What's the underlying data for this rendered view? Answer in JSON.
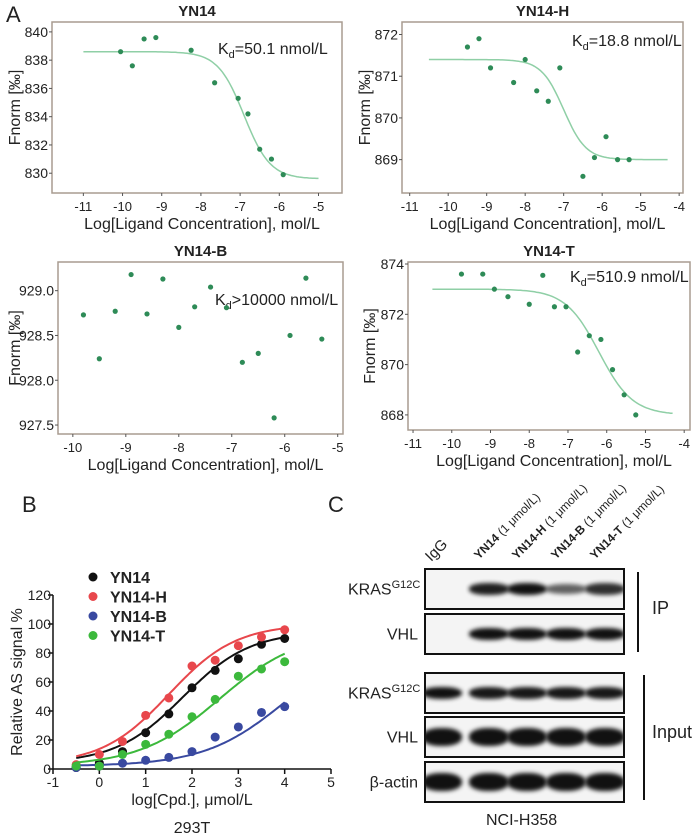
{
  "panel_labels": {
    "a": "A",
    "b": "B",
    "c": "C"
  },
  "chart_data": [
    {
      "type": "scatter",
      "title": "YN14",
      "xlabel": "Log[Ligand Concentration], mol/L",
      "ylabel": "Fnorm [‰]",
      "kd": {
        "k": "K",
        "sub": "d",
        "text": "=50.1 nmol/L"
      },
      "xlim": [
        -11.8,
        -4.4
      ],
      "ylim": [
        828.6,
        840.7
      ],
      "xticks": [
        -11,
        -10,
        -9,
        -8,
        -7,
        -6,
        -5
      ],
      "yticks": [
        830,
        832,
        834,
        836,
        838,
        840
      ],
      "point_color": "#2e8b57",
      "curve_color": "#8fcfa6",
      "points": [
        [
          -10.05,
          838.6
        ],
        [
          -9.75,
          837.6
        ],
        [
          -9.45,
          839.5
        ],
        [
          -9.15,
          839.6
        ],
        [
          -8.25,
          838.7
        ],
        [
          -7.65,
          836.4
        ],
        [
          -7.05,
          835.3
        ],
        [
          -6.8,
          834.2
        ],
        [
          -6.5,
          831.7
        ],
        [
          -6.2,
          831.0
        ],
        [
          -5.9,
          829.9
        ]
      ],
      "fit": {
        "top": 838.6,
        "bottom": 829.6,
        "midpoint": -6.9,
        "hill": 1.3,
        "x_range": [
          -11,
          -5
        ]
      }
    },
    {
      "type": "scatter",
      "title": "YN14-H",
      "xlabel": "Log[Ligand Concentration], mol/L",
      "ylabel": "Fnorm [‰]",
      "kd": {
        "k": "K",
        "sub": "d",
        "text": "=18.8 nmol/L"
      },
      "xlim": [
        -11.2,
        -3.9
      ],
      "ylim": [
        868.2,
        872.3
      ],
      "xticks": [
        -11,
        -10,
        -9,
        -8,
        -7,
        -6,
        -5,
        -4
      ],
      "yticks": [
        869,
        870,
        871,
        872
      ],
      "point_color": "#2e8b57",
      "curve_color": "#8fcfa6",
      "points": [
        [
          -9.5,
          871.7
        ],
        [
          -9.2,
          871.9
        ],
        [
          -8.9,
          871.2
        ],
        [
          -8.3,
          870.85
        ],
        [
          -8.0,
          871.4
        ],
        [
          -7.7,
          870.65
        ],
        [
          -7.4,
          870.4
        ],
        [
          -7.1,
          871.2
        ],
        [
          -6.5,
          868.6
        ],
        [
          -6.2,
          869.05
        ],
        [
          -5.9,
          869.55
        ],
        [
          -5.6,
          869.0
        ],
        [
          -5.3,
          869.0
        ]
      ],
      "fit": {
        "top": 871.4,
        "bottom": 869.0,
        "midpoint": -7.0,
        "hill": 1.5,
        "x_range": [
          -10.5,
          -4.3
        ]
      }
    },
    {
      "type": "scatter",
      "title": "YN14-B",
      "xlabel": "Log[Ligand Concentration], mol/L",
      "ylabel": "Fnorm [‰]",
      "kd": {
        "k": "K",
        "sub": "d",
        "text": ">10000 nmol/L"
      },
      "xlim": [
        -10.28,
        -4.9
      ],
      "ylim": [
        927.4,
        929.32
      ],
      "xticks": [
        -10,
        -9,
        -8,
        -7,
        -6,
        -5
      ],
      "yticks": [
        927.5,
        928.0,
        928.5,
        929.0
      ],
      "point_color": "#2e8b57",
      "points": [
        [
          -9.8,
          928.73
        ],
        [
          -9.5,
          928.24
        ],
        [
          -9.2,
          928.77
        ],
        [
          -8.9,
          929.18
        ],
        [
          -8.6,
          928.74
        ],
        [
          -8.3,
          929.13
        ],
        [
          -8.0,
          928.59
        ],
        [
          -7.7,
          928.82
        ],
        [
          -7.4,
          929.04
        ],
        [
          -7.1,
          928.81
        ],
        [
          -6.8,
          928.2
        ],
        [
          -6.5,
          928.3
        ],
        [
          -6.2,
          927.58
        ],
        [
          -5.9,
          928.5
        ],
        [
          -5.6,
          929.14
        ],
        [
          -5.3,
          928.46
        ]
      ]
    },
    {
      "type": "scatter",
      "title": "YN14-T",
      "xlabel": "Log[Ligand Concentration], mol/L",
      "ylabel": "Fnorm [‰]",
      "kd": {
        "k": "K",
        "sub": "d",
        "text": "=510.9 nmol/L"
      },
      "xlim": [
        -11.13,
        -3.85
      ],
      "ylim": [
        867.4,
        874.08
      ],
      "xticks": [
        -11,
        -10,
        -9,
        -8,
        -7,
        -6,
        -5,
        -4
      ],
      "yticks": [
        868,
        870,
        872,
        874
      ],
      "point_color": "#2e8b57",
      "curve_color": "#8fcfa6",
      "points": [
        [
          -9.75,
          873.6
        ],
        [
          -9.2,
          873.6
        ],
        [
          -8.9,
          873.0
        ],
        [
          -8.55,
          872.7
        ],
        [
          -8.0,
          872.4
        ],
        [
          -7.65,
          873.55
        ],
        [
          -7.35,
          872.3
        ],
        [
          -7.05,
          872.3
        ],
        [
          -6.75,
          870.5
        ],
        [
          -6.45,
          871.15
        ],
        [
          -6.15,
          871.0
        ],
        [
          -5.85,
          869.8
        ],
        [
          -5.55,
          868.8
        ],
        [
          -5.25,
          868.0
        ]
      ],
      "fit": {
        "top": 873.0,
        "bottom": 868.0,
        "midpoint": -6.2,
        "hill": 1.0,
        "x_range": [
          -10.5,
          -4.3
        ]
      }
    },
    {
      "type": "line",
      "xlabel": "log[Cpd.], μmol/L",
      "ylabel": "Relative AS signal %",
      "caption": "293T",
      "xlim": [
        -1,
        5
      ],
      "ylim": [
        0,
        120
      ],
      "xticks": [
        -1,
        0,
        1,
        2,
        3,
        4,
        5
      ],
      "yticks": [
        0,
        20,
        40,
        60,
        80,
        100,
        120
      ],
      "legend": "top-left",
      "x": [
        -0.5,
        0,
        0.5,
        1,
        1.5,
        2,
        2.5,
        3,
        3.5,
        4
      ],
      "series": [
        {
          "name": "YN14",
          "color": "#111111",
          "values": [
            1,
            4,
            12,
            25,
            38,
            56,
            68,
            76,
            86,
            90
          ],
          "fit": {
            "top": 95,
            "bottom": 4,
            "midpoint": 1.8,
            "hill": 0.6
          }
        },
        {
          "name": "YN14-H",
          "color": "#e8474c",
          "values": [
            3,
            10,
            19,
            37,
            49,
            71,
            75,
            85,
            91,
            96
          ],
          "fit": {
            "top": 100,
            "bottom": 3,
            "midpoint": 1.5,
            "hill": 0.6
          }
        },
        {
          "name": "YN14-B",
          "color": "#3949a0",
          "values": [
            1,
            2,
            4,
            6,
            8,
            12,
            22,
            29,
            39,
            43
          ],
          "fit": {
            "top": 90,
            "bottom": 2,
            "midpoint": 4.0,
            "hill": 0.5
          }
        },
        {
          "name": "YN14-T",
          "color": "#3cb93c",
          "values": [
            2,
            2,
            10,
            17,
            24,
            36,
            48,
            64,
            69,
            74
          ],
          "fit": {
            "top": 95,
            "bottom": 2,
            "midpoint": 2.6,
            "hill": 0.5
          }
        }
      ]
    }
  ],
  "blot": {
    "caption": "NCI-H358",
    "lanes": [
      {
        "name": "IgG",
        "conc": ""
      },
      {
        "name": "YN14",
        "conc": " (1 μmol/L)"
      },
      {
        "name": "YN14-H",
        "conc": " (1 μmol/L)"
      },
      {
        "name": "YN14-B",
        "conc": " (1 μmol/L)"
      },
      {
        "name": "YN14-T",
        "conc": " (1 μmol/L)"
      }
    ],
    "rows": [
      {
        "label": "KRAS",
        "sup": "G12C",
        "intensity": [
          0,
          0.9,
          1.0,
          0.45,
          0.8
        ]
      },
      {
        "label": "VHL",
        "sup": "",
        "intensity": [
          0,
          1.0,
          1.0,
          1.0,
          1.0
        ]
      },
      {
        "label": "KRAS",
        "sup": "G12C",
        "intensity": [
          1.0,
          0.95,
          0.95,
          0.95,
          0.95
        ]
      },
      {
        "label": "VHL",
        "sup": "",
        "intensity": [
          1.0,
          1.0,
          1.0,
          1.0,
          1.0
        ]
      },
      {
        "label": "β-actin",
        "sup": "",
        "intensity": [
          1.0,
          1.0,
          1.0,
          1.0,
          1.0
        ]
      }
    ],
    "groups": {
      "ip": "IP",
      "input": "Input"
    }
  }
}
